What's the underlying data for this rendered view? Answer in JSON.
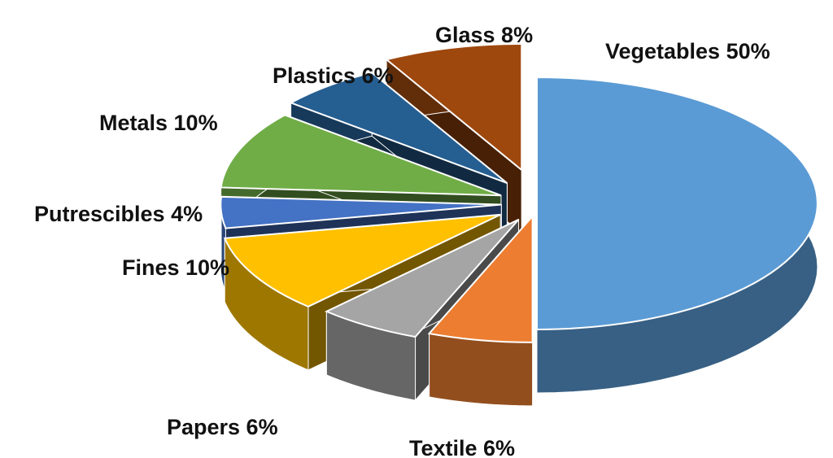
{
  "chart_data": {
    "type": "pie",
    "title": "",
    "legend": "none",
    "slices": [
      {
        "label": "Vegetables",
        "value": 50,
        "display": "Vegetables 50%",
        "color": "#5B9BD5"
      },
      {
        "label": "Textile",
        "value": 6,
        "display": "Textile 6%",
        "color": "#ED7D31"
      },
      {
        "label": "Papers",
        "value": 6,
        "display": "Papers 6%",
        "color": "#A5A5A5"
      },
      {
        "label": "Fines",
        "value": 10,
        "display": "Fines 10%",
        "color": "#FFC000"
      },
      {
        "label": "Putrescibles",
        "value": 4,
        "display": "Putrescibles 4%",
        "color": "#4472C4"
      },
      {
        "label": "Metals",
        "value": 10,
        "display": "Metals 10%",
        "color": "#70AD47"
      },
      {
        "label": "Plastics",
        "value": 6,
        "display": "Plastics 6%",
        "color": "#255E91"
      },
      {
        "label": "Glass",
        "value": 8,
        "display": "Glass 8%",
        "color": "#9E480E"
      }
    ]
  }
}
